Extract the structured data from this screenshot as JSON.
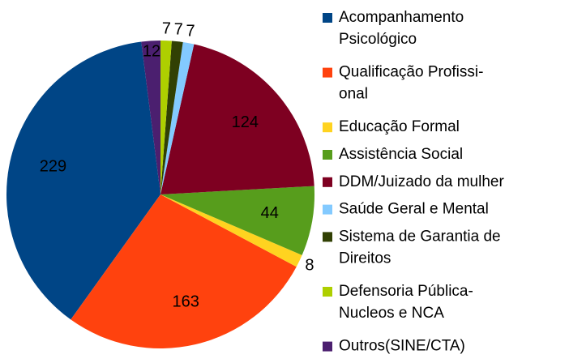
{
  "chart_data": {
    "type": "pie",
    "categories": [
      "Acompanhamento\nPsicológico",
      "Qualificação Profissi-\nonal",
      "Educação Formal",
      "Assistência Social",
      "DDM/Juizado da mulher",
      "Saúde Geral e Mental",
      "Sistema de Garantia de\nDireitos",
      "Defensoria Pública-\nNucleos e NCA",
      "Outros(SINE/CTA)"
    ],
    "values": [
      229,
      163,
      8,
      44,
      124,
      7,
      7,
      7,
      12
    ],
    "colors": [
      "#004586",
      "#ff420e",
      "#ffd320",
      "#579d1c",
      "#7e0021",
      "#83caff",
      "#314004",
      "#aecf00",
      "#4b1f6f"
    ],
    "legend": "right"
  }
}
